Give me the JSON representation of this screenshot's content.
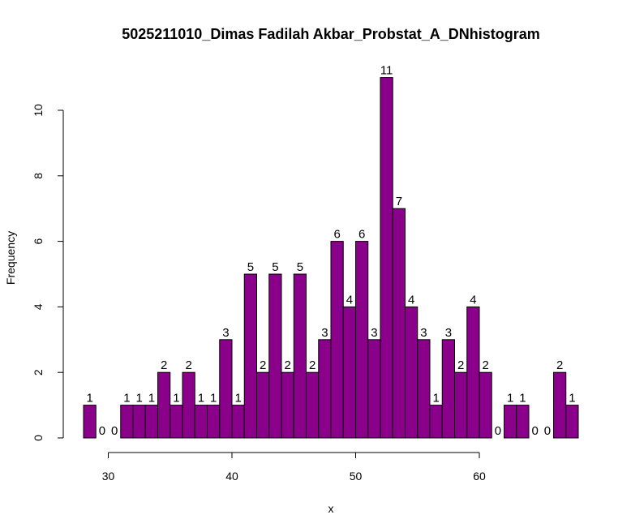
{
  "chart_data": {
    "type": "bar",
    "title": "5025211010_Dimas Fadilah Akbar_Probstat_A_DNhistogram",
    "xlabel": "x",
    "ylabel": "Frequency",
    "x_ticks": [
      30,
      40,
      50,
      60
    ],
    "y_ticks": [
      0,
      2,
      4,
      6,
      8,
      10
    ],
    "xlim": [
      28,
      68
    ],
    "ylim": [
      0,
      11
    ],
    "bar_color": "#8B008B",
    "bin_width": 1,
    "bin_start": 28,
    "counts": [
      1,
      0,
      0,
      1,
      1,
      1,
      2,
      1,
      2,
      1,
      1,
      3,
      1,
      5,
      2,
      5,
      2,
      5,
      2,
      3,
      6,
      4,
      6,
      3,
      11,
      7,
      4,
      3,
      1,
      3,
      2,
      4,
      2,
      0,
      1,
      1,
      0,
      0,
      2,
      1
    ],
    "grid": false,
    "legend": "none"
  }
}
